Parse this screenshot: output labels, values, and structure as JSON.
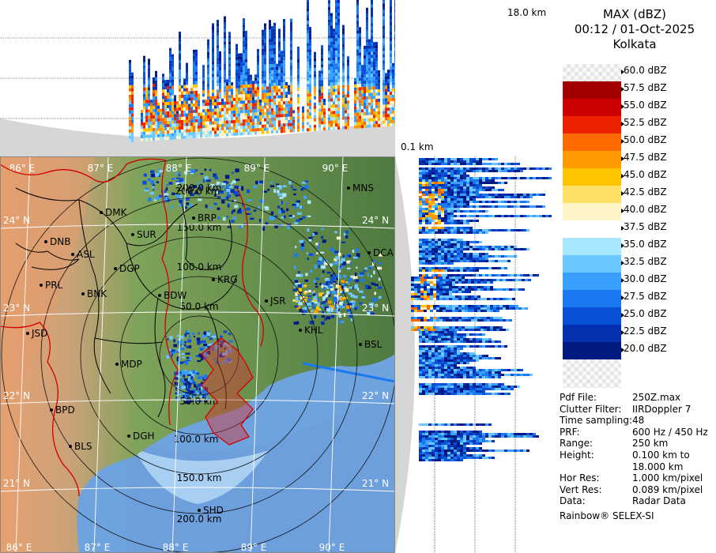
{
  "product": {
    "title": "MAX (dBZ)",
    "datetime": "00:12 / 01-Oct-2025",
    "station": "Kolkata"
  },
  "height_labels": {
    "top": "18.0 km",
    "bottom": "0.1 km"
  },
  "color_scale": [
    {
      "label": "60.0 dBZ",
      "color": "#e8e8e8"
    },
    {
      "label": "57.5 dBZ",
      "color": "#a00000"
    },
    {
      "label": "55.0 dBZ",
      "color": "#cc0000"
    },
    {
      "label": "52.5 dBZ",
      "color": "#ee2200"
    },
    {
      "label": "50.0 dBZ",
      "color": "#ff6a00"
    },
    {
      "label": "47.5 dBZ",
      "color": "#ff9a00"
    },
    {
      "label": "45.0 dBZ",
      "color": "#ffc400"
    },
    {
      "label": "42.5 dBZ",
      "color": "#ffe066"
    },
    {
      "label": "40.0 dBZ",
      "color": "#fff3c8"
    },
    {
      "label": "37.5 dBZ",
      "color": "#ffffff"
    },
    {
      "label": "35.0 dBZ",
      "color": "#a9e6ff"
    },
    {
      "label": "32.5 dBZ",
      "color": "#6cc6ff"
    },
    {
      "label": "30.0 dBZ",
      "color": "#3aa0ff"
    },
    {
      "label": "27.5 dBZ",
      "color": "#1a78f0"
    },
    {
      "label": "25.0 dBZ",
      "color": "#0a50d6"
    },
    {
      "label": "22.5 dBZ",
      "color": "#0530b0"
    },
    {
      "label": "20.0 dBZ",
      "color": "#011a82"
    }
  ],
  "info": [
    {
      "key": "Pdf File:",
      "value": "250Z.max"
    },
    {
      "key": "Clutter Filter:",
      "value": "IIRDoppler 7"
    },
    {
      "key": "Time sampling:",
      "value": "48"
    },
    {
      "key": "PRF:",
      "value": "600 Hz / 450 Hz"
    },
    {
      "key": "Range:",
      "value": "250 km"
    },
    {
      "key": "Height:",
      "value": "0.100 km to"
    },
    {
      "key": "",
      "value": "18.000 km"
    },
    {
      "key": "Hor Res:",
      "value": "1.000 km/pixel"
    },
    {
      "key": "Vert Res:",
      "value": "0.089 km/pixel"
    },
    {
      "key": "Data:",
      "value": "Radar Data"
    }
  ],
  "footer": "Rainbow® SELEX-SI",
  "map": {
    "longitudes": [
      "86° E",
      "87° E",
      "88° E",
      "89° E",
      "90° E"
    ],
    "latitudes": [
      "24° N",
      "23° N",
      "22° N",
      "21° N"
    ],
    "range_rings": [
      "50.0 km",
      "100.0 km",
      "150.0 km",
      "200.0 km"
    ],
    "cities": [
      "MNS",
      "DMK",
      "BRP",
      "SUR",
      "DNB",
      "ASL",
      "DGP",
      "DCA",
      "KRG",
      "PRL",
      "BNK",
      "BDW",
      "JSR",
      "KHL",
      "JSD",
      "BSL",
      "MDP",
      "BPD",
      "DGH",
      "BLS",
      "SHD"
    ],
    "extra_labels": [
      "200.0 km",
      "100.0 km"
    ]
  },
  "palette": {
    "land_light": "#c9c9a0",
    "land_green": "#5e8a4a",
    "sea_deep": "#6fa3de",
    "sea_shallow": "#a8cff2",
    "district": "#000000",
    "state": "#d40000",
    "panel_bg": "#d6d6d6"
  }
}
